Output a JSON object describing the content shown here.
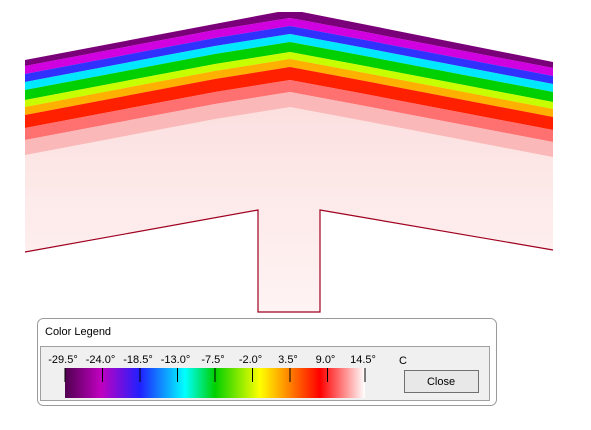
{
  "legend": {
    "title": "Color Legend",
    "labels": [
      "-29.5°",
      "-24.0°",
      "-18.5°",
      "-13.0°",
      "-7.5°",
      "-2.0°",
      "3.5°",
      "9.0°",
      "14.5°"
    ],
    "unit": "C"
  },
  "button": {
    "label": "Close"
  }
}
